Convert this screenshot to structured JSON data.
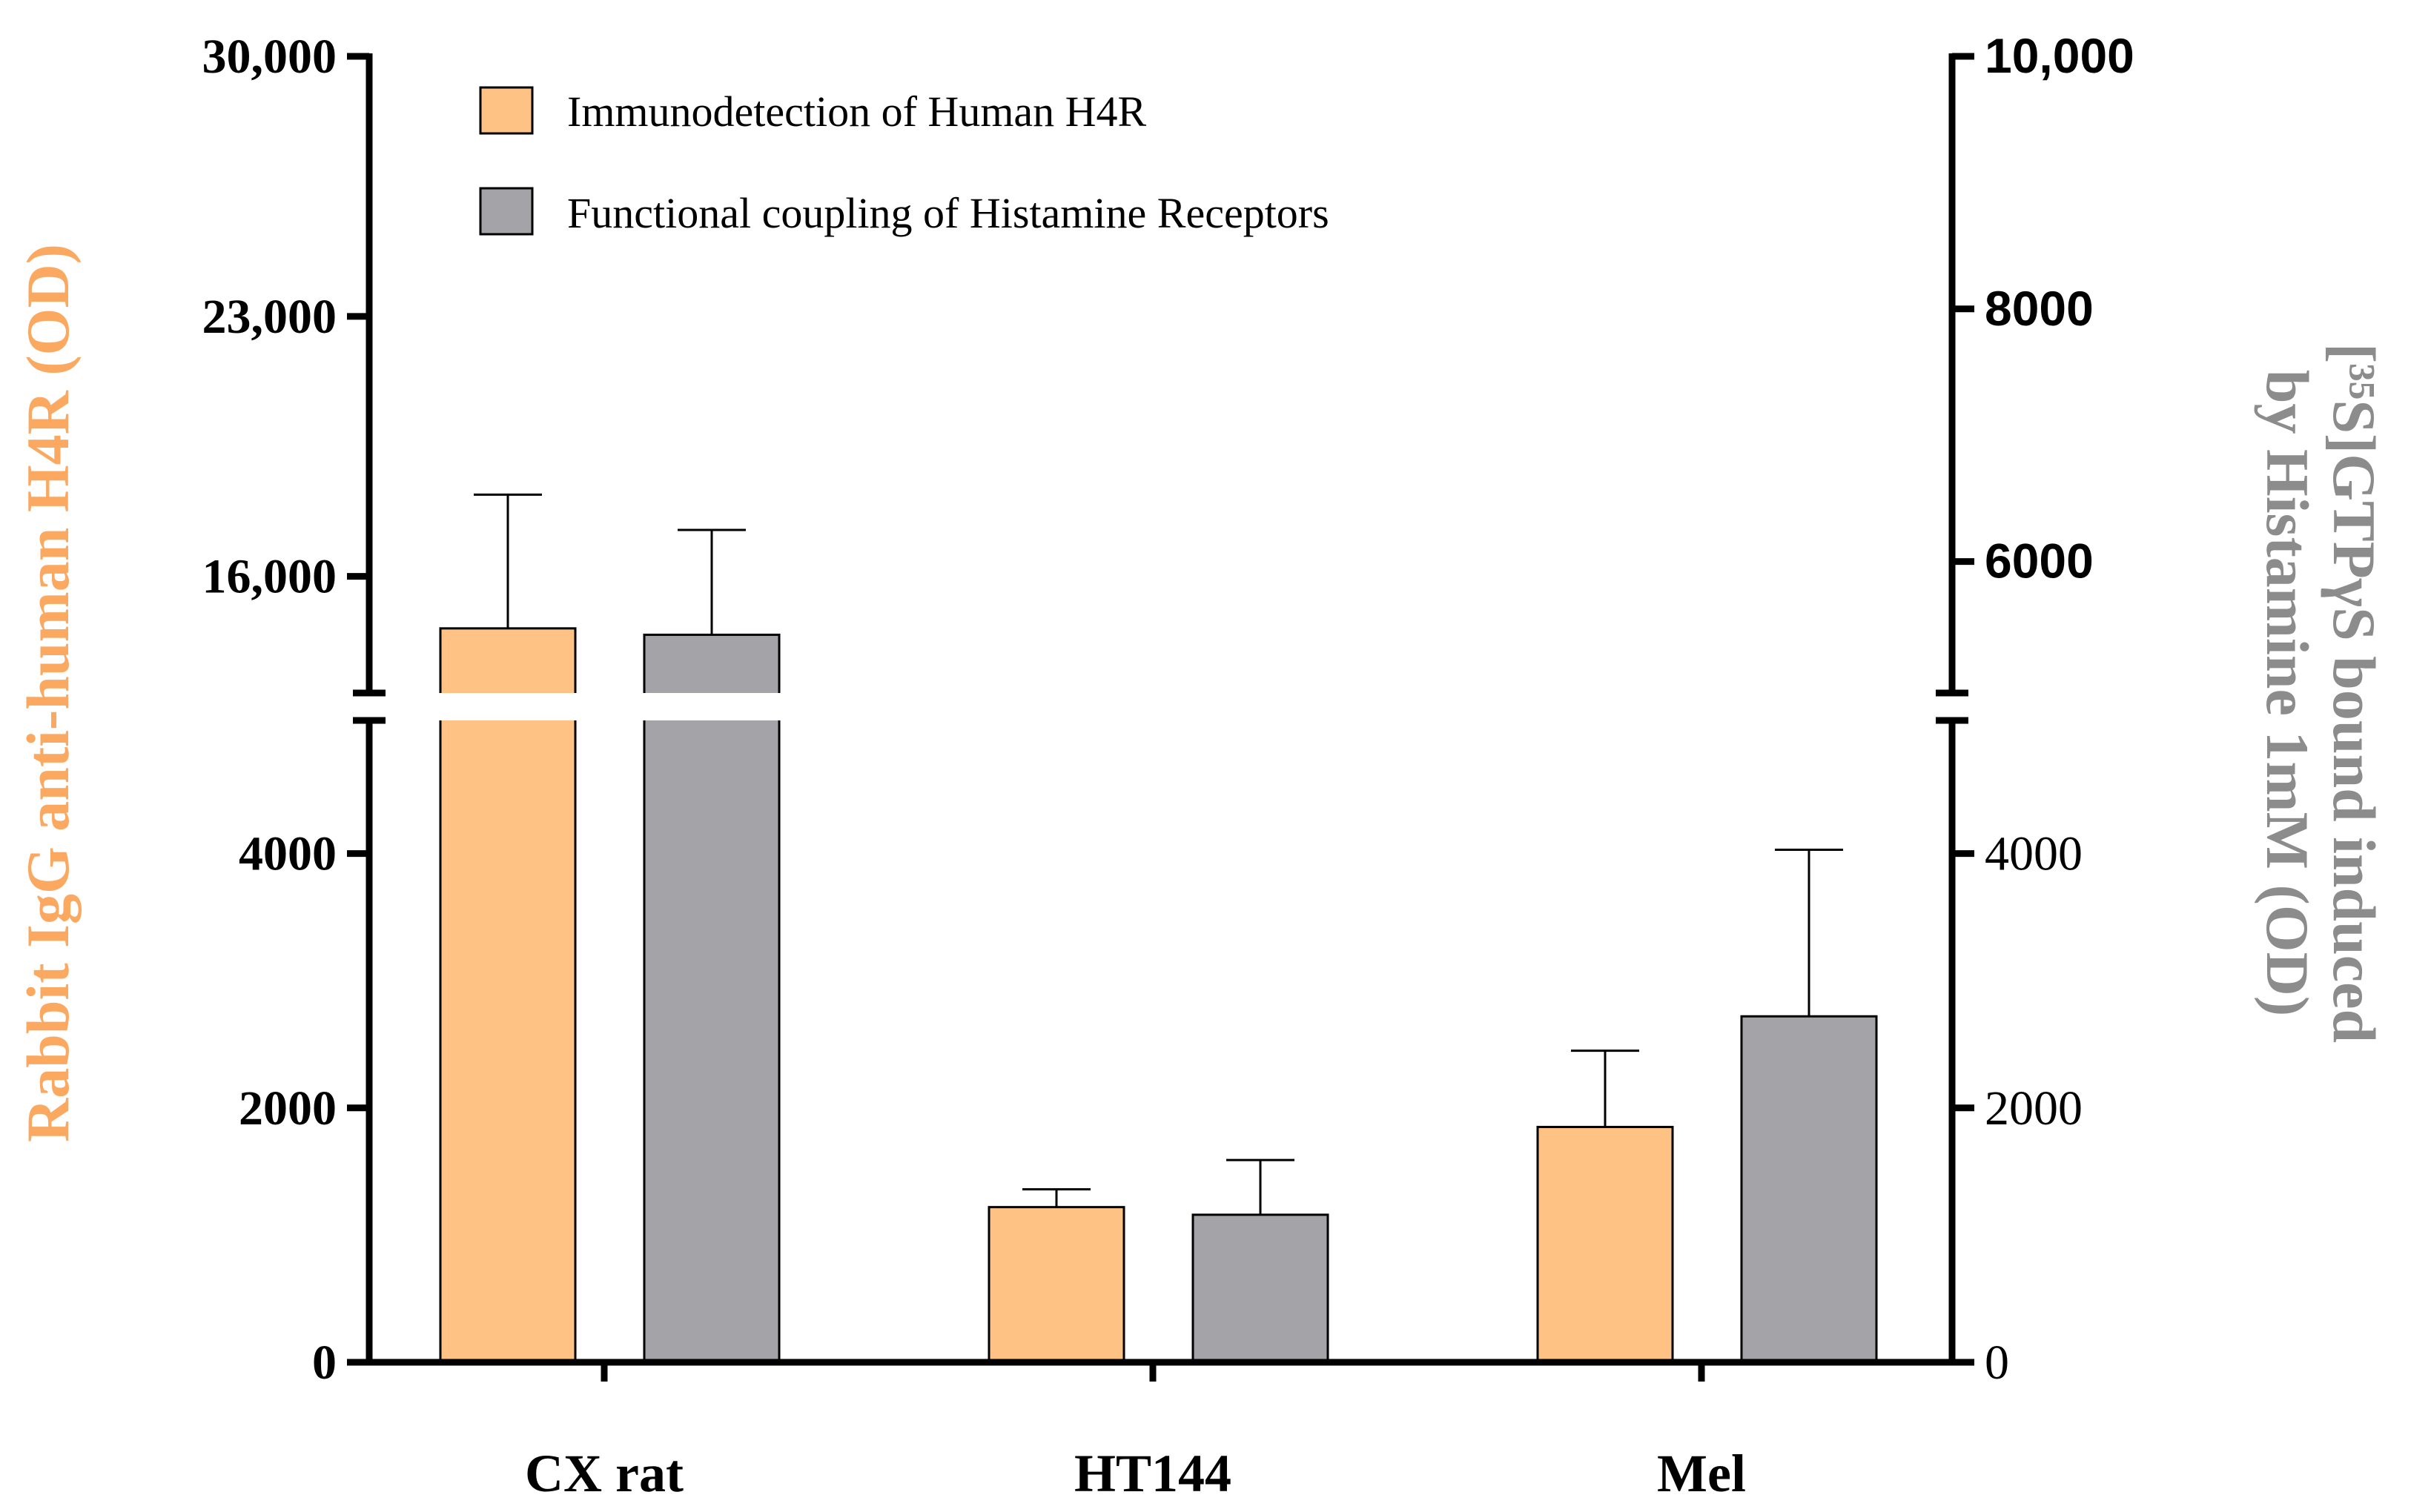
{
  "chart_data": {
    "type": "bar",
    "categories": [
      "CX rat",
      "HT144",
      "Mel"
    ],
    "series": [
      {
        "name": "Immunodetection of Human H4R",
        "axis": "left",
        "color": "#FFC285",
        "values": [
          14600,
          1220,
          1850
        ],
        "errors": [
          3600,
          140,
          600
        ]
      },
      {
        "name": "Functional coupling of Histamine Receptors",
        "axis": "right",
        "color": "#A3A3A8",
        "values": [
          5420,
          1160,
          2720
        ],
        "errors": [
          830,
          430,
          1310
        ]
      }
    ],
    "left_axis": {
      "label": "Rabbit IgG anti-human H4R (OD)",
      "label_color": "#FBA860",
      "lower_range": [
        0,
        5000
      ],
      "upper_range": [
        13000,
        30000
      ],
      "ticks": [
        {
          "value": 0,
          "label": "0"
        },
        {
          "value": 2000,
          "label": "2000"
        },
        {
          "value": 4000,
          "label": "4000"
        },
        {
          "value": 16000,
          "label": "16,000"
        },
        {
          "value": 23000,
          "label": "23,000"
        },
        {
          "value": 30000,
          "label": "30,000"
        }
      ]
    },
    "right_axis": {
      "label_line1": "[³⁵S]GTPγS bound induced",
      "label_line2": "by Histamine 1mM (OD)",
      "label_color": "#8C8C8C",
      "lower_range": [
        0,
        5000
      ],
      "upper_range": [
        5000,
        10000
      ],
      "ticks": [
        {
          "value": 0,
          "label": "0"
        },
        {
          "value": 2000,
          "label": "2000"
        },
        {
          "value": 4000,
          "label": "4000"
        },
        {
          "value": 6000,
          "label": "6000"
        },
        {
          "value": 8000,
          "label": "8000"
        },
        {
          "value": 10000,
          "label": "10,000"
        }
      ]
    },
    "legend_position": "top-left"
  }
}
